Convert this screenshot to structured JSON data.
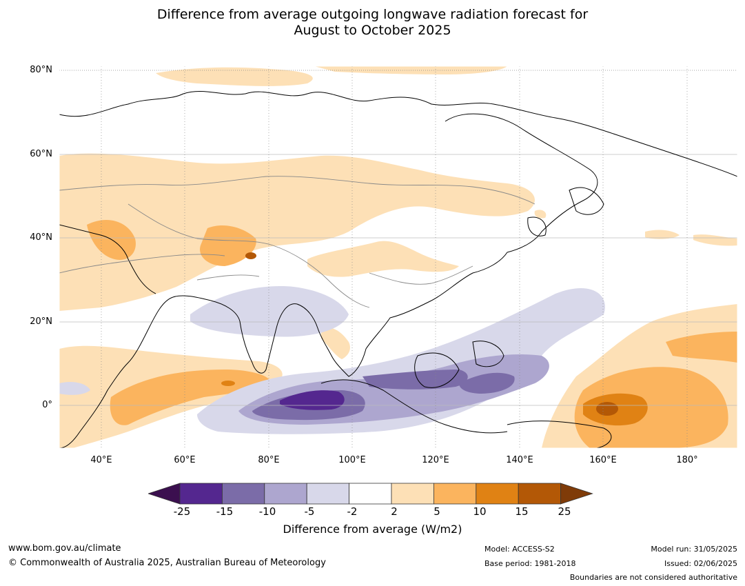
{
  "title": {
    "line1": "Difference from average outgoing longwave radiation forecast for",
    "line2": "August to October 2025"
  },
  "map": {
    "lat_labels": [
      "80°N",
      "60°N",
      "40°N",
      "20°N",
      "0°"
    ],
    "lon_labels": [
      "40°E",
      "60°E",
      "80°E",
      "100°E",
      "120°E",
      "140°E",
      "160°E",
      "180°"
    ],
    "extent": {
      "lon": [
        30,
        192
      ],
      "lat": [
        -10,
        81
      ]
    }
  },
  "colorbar": {
    "ticks": [
      "-25",
      "-15",
      "-10",
      "-5",
      "-2",
      "2",
      "5",
      "10",
      "15",
      "25"
    ],
    "colors": {
      "under": "#3b0f4f",
      "bins": [
        "#54278f",
        "#7b6ca8",
        "#ada6cf",
        "#d8d8ea",
        "#ffffff",
        "#fde0b6",
        "#fbb45e",
        "#e08214",
        "#b35806"
      ],
      "over": "#7f3b08"
    },
    "label": "Difference from average (W/m2)"
  },
  "footer": {
    "website": "www.bom.gov.au/climate",
    "copyright": "© Commonwealth of Australia 2025, Australian Bureau of Meteorology",
    "model": "Model: ACCESS-S2",
    "base_period": "Base period: 1981-2018",
    "model_run": "Model run: 31/05/2025",
    "issued": "Issued: 02/06/2025",
    "boundaries": "Boundaries are not considered authoritative"
  }
}
